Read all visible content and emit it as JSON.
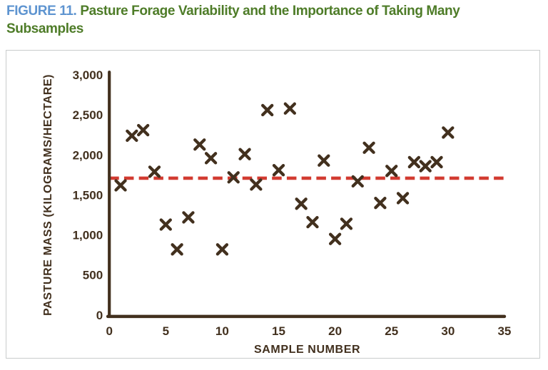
{
  "header": {
    "figure_label": "FIGURE 11.",
    "title_line1": "Pasture Forage Variability and the Importance of Taking Many",
    "title_line2": "Subsamples"
  },
  "chart_data": {
    "type": "scatter",
    "title": "Pasture Forage Variability and the Importance of Taking Many Subsamples",
    "xlabel": "SAMPLE NUMBER",
    "ylabel": "PASTURE MASS (KILOGRAMS/HECTARE)",
    "x": [
      1,
      2,
      3,
      4,
      5,
      6,
      7,
      8,
      9,
      10,
      11,
      12,
      13,
      14,
      15,
      16,
      17,
      18,
      19,
      20,
      21,
      22,
      23,
      24,
      25,
      26,
      27,
      28,
      29,
      30
    ],
    "y": [
      1620,
      2240,
      2310,
      1790,
      1130,
      820,
      1220,
      2130,
      1960,
      820,
      1720,
      2010,
      1630,
      2560,
      1810,
      2580,
      1390,
      1160,
      1930,
      950,
      1140,
      1670,
      2090,
      1400,
      1800,
      1460,
      1910,
      1860,
      1910,
      2280
    ],
    "marker": "x",
    "grid": false,
    "legend": false,
    "xlim": [
      0,
      35
    ],
    "ylim": [
      0,
      3000
    ],
    "x_ticks": [
      0,
      5,
      10,
      15,
      20,
      25,
      30,
      35
    ],
    "x_tick_labels": [
      "0",
      "5",
      "10",
      "15",
      "20",
      "25",
      "30",
      "35"
    ],
    "y_ticks": [
      0,
      500,
      1000,
      1500,
      2000,
      2500,
      3000
    ],
    "y_tick_labels": [
      "0",
      "500",
      "1,000",
      "1,500",
      "2,000",
      "2,500",
      "3,000"
    ],
    "mean_line": {
      "value": 1710,
      "style": "dashed"
    }
  },
  "colors": {
    "figure_label": "#5e94d0",
    "title_text": "#4e7c28",
    "axis_ink": "#42301e",
    "marker": "#42301e",
    "mean_line": "#d23b31",
    "panel_border": "#c9cccc"
  }
}
